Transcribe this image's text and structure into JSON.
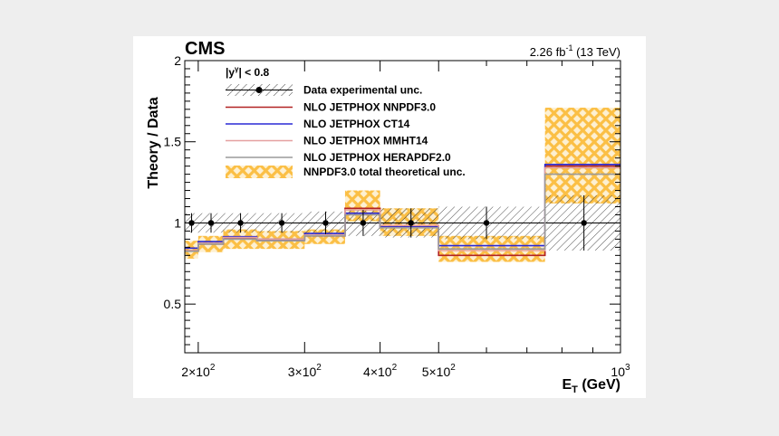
{
  "chart_data": {
    "type": "step",
    "experiment": "CMS",
    "luminosity": "2.26 fb",
    "luminosity_exp": "-1",
    "energy": "(13 TeV)",
    "rapidity_label_base": "|y",
    "rapidity_label_sup": "γ",
    "rapidity_label_tail": "| < 0.8",
    "ylabel": "Theory / Data",
    "xlabel_main": "E",
    "xlabel_sub": "T",
    "xlabel_unit": " (GeV)",
    "xscale": "log",
    "xlim": [
      190,
      1000
    ],
    "ylim": [
      0.2,
      2.0
    ],
    "yticks": [
      0.5,
      1,
      1.5,
      2
    ],
    "ytick_labels": [
      "0.5",
      "1",
      "1.5",
      "2"
    ],
    "xtick_major": [
      {
        "value": 200,
        "mant": "2",
        "base": "×10",
        "exp": "2"
      },
      {
        "value": 300,
        "mant": "3",
        "base": "×10",
        "exp": "2"
      },
      {
        "value": 400,
        "mant": "4",
        "base": "×10",
        "exp": "2"
      },
      {
        "value": 500,
        "mant": "5",
        "base": "×10",
        "exp": "2"
      },
      {
        "value": 1000,
        "mant": "",
        "base": "10",
        "exp": "3"
      }
    ],
    "bin_edges": [
      190,
      200,
      220,
      250,
      300,
      350,
      400,
      500,
      750,
      1000
    ],
    "data_points": [
      {
        "x": 195,
        "y": 1.0
      },
      {
        "x": 210,
        "y": 1.0
      },
      {
        "x": 235,
        "y": 1.0
      },
      {
        "x": 275,
        "y": 1.0
      },
      {
        "x": 325,
        "y": 1.0
      },
      {
        "x": 375,
        "y": 1.0
      },
      {
        "x": 450,
        "y": 1.0
      },
      {
        "x": 600,
        "y": 1.0
      },
      {
        "x": 870,
        "y": 1.0
      }
    ],
    "data_unc": [
      0.06,
      0.06,
      0.06,
      0.06,
      0.07,
      0.08,
      0.09,
      0.1,
      0.17
    ],
    "series": [
      {
        "name": "NLO JETPHOX NNPDF3.0",
        "color": "#b22222",
        "values": [
          0.83,
          0.87,
          0.905,
          0.895,
          0.92,
          1.09,
          0.975,
          0.8,
          1.35
        ]
      },
      {
        "name": "NLO JETPHOX CT14",
        "color": "#2a2ad6",
        "values": [
          0.845,
          0.885,
          0.915,
          0.9,
          0.935,
          1.06,
          0.975,
          0.86,
          1.36
        ]
      },
      {
        "name": "NLO JETPHOX MMHT14",
        "color": "#e4a0a0",
        "values": [
          0.83,
          0.875,
          0.91,
          0.9,
          0.925,
          1.08,
          0.985,
          0.83,
          1.34
        ]
      },
      {
        "name": "NLO JETPHOX HERAPDF2.0",
        "color": "#9a9a9a",
        "values": [
          0.825,
          0.87,
          0.9,
          0.89,
          0.92,
          1.05,
          0.97,
          0.84,
          1.3
        ]
      }
    ],
    "theory_band_label": "NNPDF3.0 total theoretical unc.",
    "theory_band_color": "#fbbf45",
    "theory_band": [
      [
        0.78,
        0.89
      ],
      [
        0.82,
        0.92
      ],
      [
        0.84,
        0.96
      ],
      [
        0.84,
        0.95
      ],
      [
        0.87,
        0.96
      ],
      [
        1.01,
        1.2
      ],
      [
        0.92,
        1.09
      ],
      [
        0.76,
        0.92
      ],
      [
        1.12,
        1.71
      ]
    ],
    "data_legend_label": "Data experimental unc."
  }
}
